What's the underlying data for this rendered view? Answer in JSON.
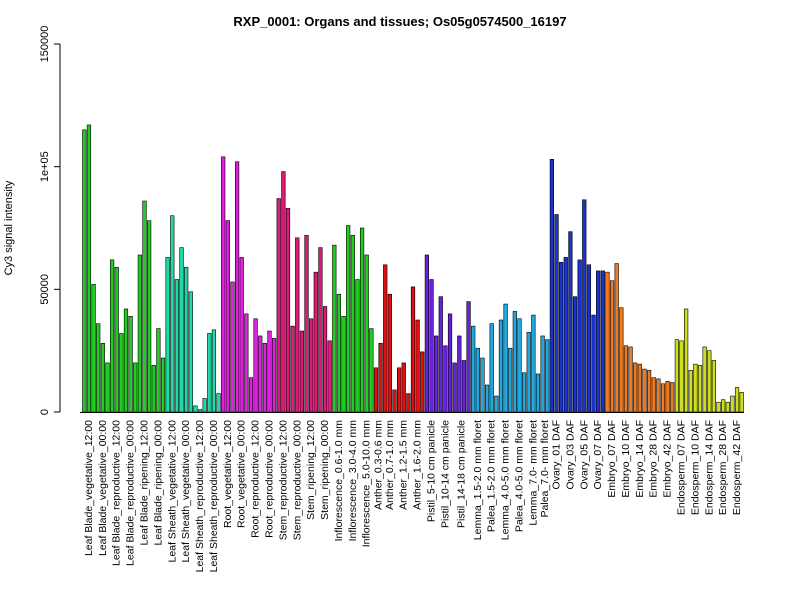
{
  "chart_data": {
    "type": "bar",
    "title": "RXP_0001: Organs and tissues; Os05g0574500_16197",
    "xlabel": "",
    "ylabel": "Cy3 signal intensity",
    "ylim": [
      0,
      150000
    ],
    "yticks": [
      0,
      50000,
      100000,
      150000
    ],
    "ytick_labels": [
      "0",
      "50000",
      "1e+05",
      "150000"
    ],
    "grid": false,
    "legend": "none",
    "groups": [
      {
        "label": "Leaf Blade_vegetative_12:00",
        "color": "#22cc22",
        "values": [
          115000,
          117000,
          52000
        ]
      },
      {
        "label": "Leaf Blade_vegetative_00:00",
        "color": "#22cc22",
        "values": [
          36000,
          28000,
          20000
        ]
      },
      {
        "label": "Leaf Blade_reproductive_12:00",
        "color": "#22cc22",
        "values": [
          62000,
          59000,
          32000
        ]
      },
      {
        "label": "Leaf Blade_reproductive_00:00",
        "color": "#22cc22",
        "values": [
          42000,
          39000,
          20000
        ]
      },
      {
        "label": "Leaf Blade_ripening_12:00",
        "color": "#22cc22",
        "values": [
          64000,
          86000,
          78000
        ]
      },
      {
        "label": "Leaf Blade_ripening_00:00",
        "color": "#22cc22",
        "values": [
          19000,
          34000,
          22000
        ]
      },
      {
        "label": "Leaf Sheath_vegetative_12:00",
        "color": "#22d8a8",
        "values": [
          63000,
          80000,
          54000
        ]
      },
      {
        "label": "Leaf Sheath_vegetative_00:00",
        "color": "#22d8a8",
        "values": [
          67000,
          59000,
          49000
        ]
      },
      {
        "label": "Leaf Sheath_reproductive_12:00",
        "color": "#22d8a8",
        "values": [
          2500,
          1000,
          5500
        ]
      },
      {
        "label": "Leaf Sheath_reproductive_00:00",
        "color": "#22d8a8",
        "values": [
          32000,
          33500,
          7500
        ]
      },
      {
        "label": "Root_vegetative_12:00",
        "color": "#dd22dd",
        "values": [
          104000,
          78000,
          53000
        ]
      },
      {
        "label": "Root_vegetative_00:00",
        "color": "#dd22dd",
        "values": [
          102000,
          63000,
          40000
        ]
      },
      {
        "label": "Root_reproductive_12:00",
        "color": "#dd22dd",
        "values": [
          14000,
          38000,
          31000
        ]
      },
      {
        "label": "Root_reproductive_00:00",
        "color": "#dd22dd",
        "values": [
          28000,
          33000,
          30000
        ]
      },
      {
        "label": "Stem_reproductive_12:00",
        "color": "#dd1a77",
        "values": [
          87000,
          98000,
          83000
        ]
      },
      {
        "label": "Stem_reproductive_00:00",
        "color": "#dd1a77",
        "values": [
          35000,
          71000,
          33000
        ]
      },
      {
        "label": "Stem_ripening_12:00",
        "color": "#dd1a77",
        "values": [
          72000,
          38000,
          57000
        ]
      },
      {
        "label": "Stem_ripening_00:00",
        "color": "#dd1a77",
        "values": [
          67000,
          43000,
          29000
        ]
      },
      {
        "label": "Inflorescence_0.6-1.0 mm",
        "color": "#22cc22",
        "values": [
          68000,
          48000,
          39000
        ]
      },
      {
        "label": "Inflorescence_3.0-4.0 mm",
        "color": "#22cc22",
        "values": [
          76000,
          72000,
          54000
        ]
      },
      {
        "label": "Inflorescence_5.0-10.0 mm",
        "color": "#22cc22",
        "values": [
          75000,
          64000,
          34000
        ]
      },
      {
        "label": "Anther_0.3-0.6 mm",
        "color": "#dd1111",
        "values": [
          18000,
          28000
        ]
      },
      {
        "label": "Anther_0.7-1.0 mm",
        "color": "#dd1111",
        "values": [
          60000,
          48000,
          9000
        ]
      },
      {
        "label": "Anther_1.2-1.5 mm",
        "color": "#dd1111",
        "values": [
          18000,
          20000,
          7500
        ]
      },
      {
        "label": "Anther_1.6-2.0 mm",
        "color": "#dd1111",
        "values": [
          51000,
          37500,
          24500
        ]
      },
      {
        "label": "Pistil_5-10 cm panicle",
        "color": "#6622dd",
        "values": [
          64000,
          54000,
          31000
        ]
      },
      {
        "label": "Pistil_10-14 cm panicle",
        "color": "#6622dd",
        "values": [
          47000,
          27000,
          40000
        ]
      },
      {
        "label": "Pistil_14-18 cm panicle",
        "color": "#6622dd",
        "values": [
          20000,
          31000,
          21000,
          45000
        ]
      },
      {
        "label": "Lemma_1.5-2.0 mm floret",
        "color": "#22a8dd",
        "values": [
          35000,
          26000,
          22000
        ]
      },
      {
        "label": "Palea_1.5-2.0 mm floret",
        "color": "#22a8dd",
        "values": [
          11000,
          36000,
          6500
        ]
      },
      {
        "label": "Lemma_4.0-5.0 mm floret",
        "color": "#22a8dd",
        "values": [
          37500,
          44000,
          26000
        ]
      },
      {
        "label": "Palea_4.0-5.0 mm floret",
        "color": "#22a8dd",
        "values": [
          41000,
          38000,
          16000
        ]
      },
      {
        "label": "Lemma_7.0- mm floret",
        "color": "#22a8dd",
        "values": [
          32500,
          39500,
          15500
        ]
      },
      {
        "label": "Palea_7.0- mm floret",
        "color": "#22a8dd",
        "values": [
          31000,
          29500
        ]
      },
      {
        "label": "Ovary_01 DAF",
        "color": "#1a33cc",
        "values": [
          103000,
          80500,
          61000
        ]
      },
      {
        "label": "Ovary_03 DAF",
        "color": "#1a33cc",
        "values": [
          63000,
          73500,
          47000
        ]
      },
      {
        "label": "Ovary_05 DAF",
        "color": "#1a33cc",
        "values": [
          62000,
          86500,
          60000
        ]
      },
      {
        "label": "Ovary_07 DAF",
        "color": "#1a33cc",
        "values": [
          39500,
          57500,
          57500
        ]
      },
      {
        "label": "Embryo_07 DAF",
        "color": "#ee7a22",
        "values": [
          57000,
          53500,
          60500
        ]
      },
      {
        "label": "Embryo_10 DAF",
        "color": "#ee7a22",
        "values": [
          42500,
          27000,
          26500
        ]
      },
      {
        "label": "Embryo_14 DAF",
        "color": "#ee7a22",
        "values": [
          20000,
          19500,
          17500
        ]
      },
      {
        "label": "Embryo_28 DAF",
        "color": "#ee7a22",
        "values": [
          17000,
          14000,
          13500
        ]
      },
      {
        "label": "Embryo_42 DAF",
        "color": "#ee7a22",
        "values": [
          11500,
          12500,
          12000
        ]
      },
      {
        "label": "Endosperm_07 DAF",
        "color": "#ccdd22",
        "values": [
          29500,
          29000,
          42000
        ]
      },
      {
        "label": "Endosperm_10 DAF",
        "color": "#ccdd22",
        "values": [
          17000,
          19500,
          19000
        ]
      },
      {
        "label": "Endosperm_14 DAF",
        "color": "#ccdd22",
        "values": [
          26500,
          25000,
          21000
        ]
      },
      {
        "label": "Endosperm_28 DAF",
        "color": "#ccdd22",
        "values": [
          4000,
          5000,
          4000
        ]
      },
      {
        "label": "Endosperm_42 DAF",
        "color": "#ccdd22",
        "values": [
          6500,
          10000,
          8000
        ]
      }
    ]
  }
}
